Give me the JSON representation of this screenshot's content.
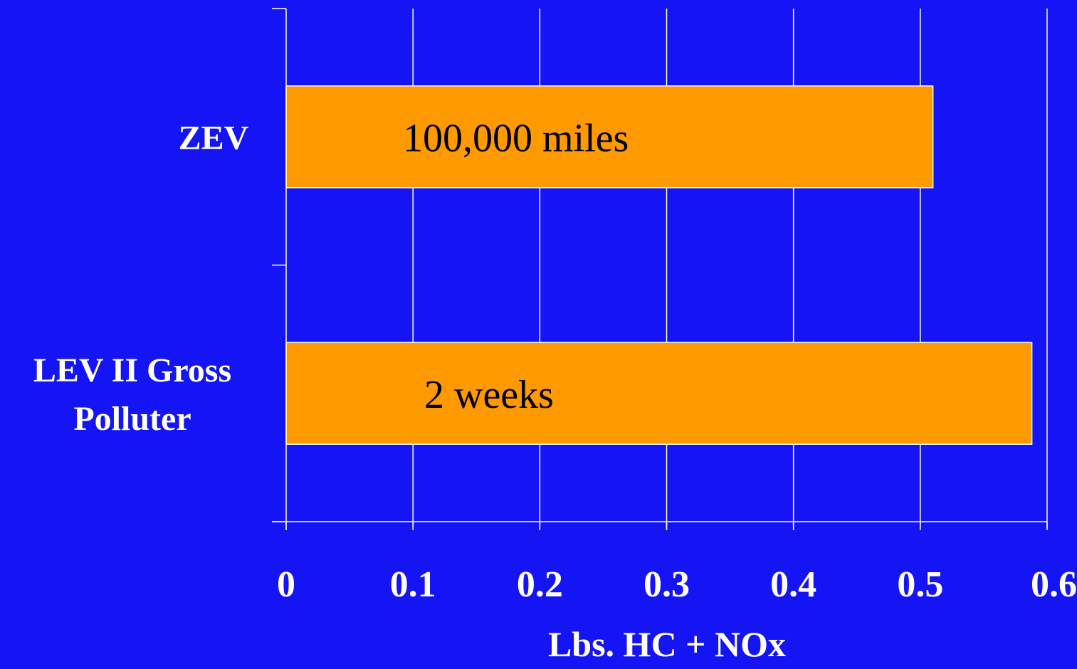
{
  "chart_data": {
    "type": "bar",
    "orientation": "horizontal",
    "categories": [
      "ZEV",
      "LEV II Gross Polluter"
    ],
    "category_label_lines": [
      [
        "ZEV"
      ],
      [
        "LEV II Gross",
        "Polluter"
      ]
    ],
    "values": [
      0.51,
      0.588
    ],
    "bar_labels": [
      "100,000 miles",
      "2 weeks"
    ],
    "xlabel": "Lbs. HC + NOx",
    "ylabel": "",
    "xlim": [
      0,
      0.6
    ],
    "x_ticks": [
      0,
      0.1,
      0.2,
      0.3,
      0.4,
      0.5,
      0.6
    ],
    "x_tick_labels": [
      "0",
      "0.1",
      "0.2",
      "0.3",
      "0.4",
      "0.5",
      "0.6"
    ],
    "grid": "vertical",
    "legend": "none",
    "colors": {
      "background": "#1414f5",
      "bar": "#ff9900",
      "grid": "#ffffff",
      "text": "#ffffff",
      "bar_text": "#000000"
    }
  }
}
